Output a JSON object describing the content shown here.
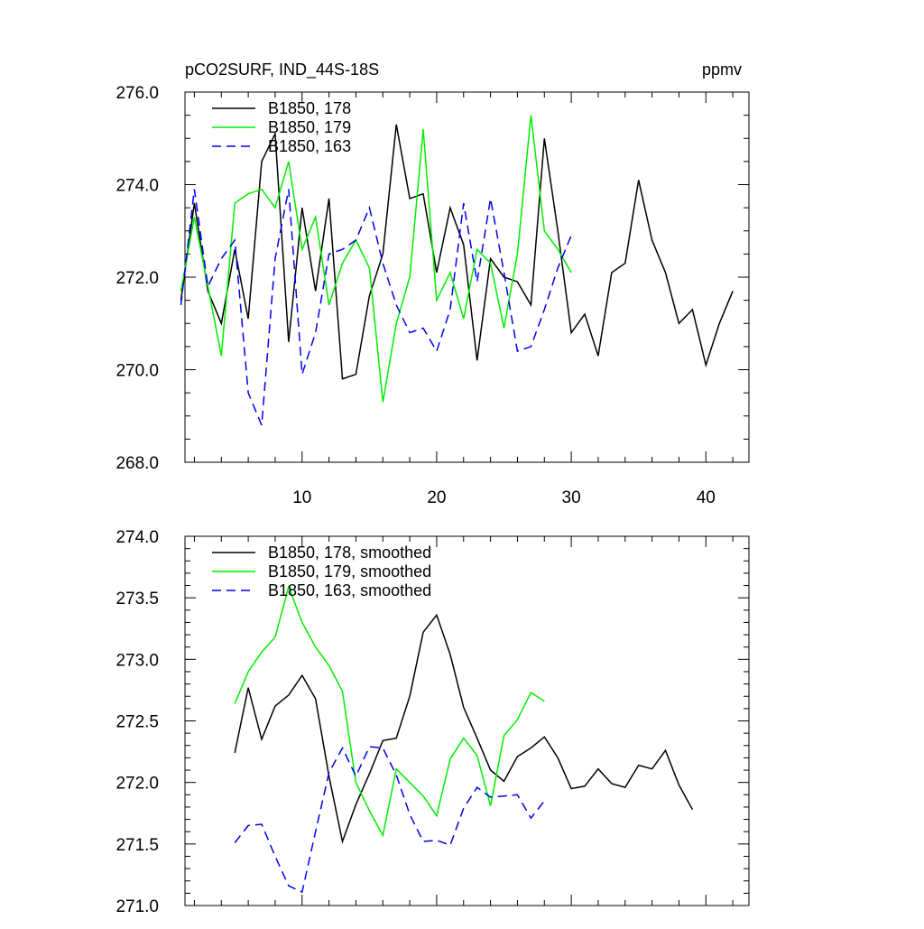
{
  "chart_data": [
    {
      "type": "line",
      "title": "pCO2SURF, IND_44S-18S",
      "units": "ppmv",
      "xlim": [
        1.3,
        43.2
      ],
      "ylim": [
        268.0,
        276.0
      ],
      "x_major_ticks": [
        10,
        20,
        30,
        40
      ],
      "x_tick_labels": [
        "10",
        "20",
        "30",
        "40"
      ],
      "x_minor_step": 2,
      "y_major_ticks": [
        268.0,
        270.0,
        272.0,
        274.0,
        276.0
      ],
      "y_tick_labels": [
        "268.0",
        "270.0",
        "272.0",
        "274.0",
        "276.0"
      ],
      "y_minor_step": 0.5,
      "legend_position": "top-left",
      "series": [
        {
          "name": "B1850, 178",
          "color": "#000000",
          "dash": "solid",
          "x": [
            1,
            2,
            3,
            4,
            5,
            6,
            7,
            8,
            9,
            10,
            11,
            12,
            13,
            14,
            15,
            16,
            17,
            18,
            19,
            20,
            21,
            22,
            23,
            24,
            25,
            26,
            27,
            28,
            29,
            30,
            31,
            32,
            33,
            34,
            35,
            36,
            37,
            38,
            39,
            40,
            41,
            42
          ],
          "values": [
            271.5,
            273.6,
            271.7,
            271.0,
            272.6,
            271.1,
            274.5,
            275.1,
            270.6,
            273.5,
            271.7,
            273.7,
            269.8,
            269.9,
            271.6,
            272.5,
            275.3,
            273.7,
            273.8,
            272.1,
            273.5,
            272.7,
            270.2,
            272.4,
            272.0,
            271.9,
            271.4,
            275.0,
            273.0,
            270.8,
            271.2,
            270.3,
            272.1,
            272.3,
            274.1,
            272.8,
            272.1,
            271.0,
            271.3,
            270.1,
            271.0,
            271.7
          ]
        },
        {
          "name": "B1850, 179",
          "color": "#00ee00",
          "dash": "solid",
          "x": [
            1,
            2,
            3,
            4,
            5,
            6,
            7,
            8,
            9,
            10,
            11,
            12,
            13,
            14,
            15,
            16,
            17,
            18,
            19,
            20,
            21,
            22,
            23,
            24,
            25,
            26,
            27,
            28,
            29,
            30
          ],
          "values": [
            271.7,
            273.3,
            271.8,
            270.3,
            273.6,
            273.8,
            273.9,
            273.5,
            274.5,
            272.6,
            273.3,
            271.4,
            272.3,
            272.8,
            272.2,
            269.3,
            271.0,
            272.0,
            275.2,
            271.5,
            272.1,
            271.1,
            272.6,
            272.3,
            270.9,
            272.5,
            275.5,
            273.0,
            272.6,
            272.1
          ]
        },
        {
          "name": "B1850, 163",
          "color": "#0000ee",
          "dash": "dashed",
          "x": [
            1,
            2,
            3,
            4,
            5,
            6,
            7,
            8,
            9,
            10,
            11,
            12,
            13,
            14,
            15,
            16,
            17,
            18,
            19,
            20,
            21,
            22,
            23,
            24,
            25,
            26,
            27,
            28,
            29,
            30
          ],
          "values": [
            271.4,
            273.9,
            271.8,
            272.4,
            272.8,
            269.5,
            268.8,
            272.4,
            273.9,
            269.9,
            270.8,
            272.5,
            272.6,
            272.8,
            273.5,
            272.3,
            271.4,
            270.8,
            270.9,
            270.4,
            271.3,
            273.6,
            271.9,
            273.7,
            272.1,
            270.4,
            270.5,
            271.3,
            272.2,
            272.9
          ]
        }
      ]
    },
    {
      "type": "line",
      "title": "",
      "xlim": [
        1.3,
        43.2
      ],
      "ylim": [
        271.0,
        274.0
      ],
      "x_major_ticks": [
        10,
        20,
        30,
        40
      ],
      "x_minor_step": 2,
      "y_major_ticks": [
        271.0,
        271.5,
        272.0,
        272.5,
        273.0,
        273.5,
        274.0
      ],
      "y_tick_labels": [
        "271.0",
        "271.5",
        "272.0",
        "272.5",
        "273.0",
        "273.5",
        "274.0"
      ],
      "y_minor_step": 0.1,
      "legend_position": "top-left",
      "series": [
        {
          "name": "B1850, 178, smoothed",
          "color": "#000000",
          "dash": "solid",
          "x": [
            5,
            6,
            7,
            8,
            9,
            10,
            11,
            12,
            13,
            14,
            15,
            16,
            17,
            18,
            19,
            20,
            21,
            22,
            23,
            24,
            25,
            26,
            27,
            28,
            29,
            30,
            31,
            32,
            33,
            34,
            35,
            36,
            37,
            38,
            39
          ],
          "values": [
            272.24,
            272.77,
            272.35,
            272.62,
            272.71,
            272.87,
            272.68,
            272.05,
            271.52,
            271.82,
            272.07,
            272.34,
            272.36,
            272.7,
            273.22,
            273.36,
            273.04,
            272.61,
            272.36,
            272.1,
            272.01,
            272.21,
            272.28,
            272.37,
            272.2,
            271.95,
            271.97,
            272.11,
            271.99,
            271.96,
            272.14,
            272.11,
            272.26,
            271.98,
            271.78
          ]
        },
        {
          "name": "B1850, 179, smoothed",
          "color": "#00ee00",
          "dash": "solid",
          "x": [
            5,
            6,
            7,
            8,
            9,
            10,
            11,
            12,
            13,
            14,
            15,
            16,
            17,
            18,
            19,
            20,
            21,
            22,
            23,
            24,
            25,
            26,
            27,
            28
          ],
          "values": [
            272.64,
            272.9,
            273.06,
            273.18,
            273.59,
            273.3,
            273.1,
            272.95,
            272.74,
            272.0,
            271.77,
            271.57,
            272.11,
            272.0,
            271.89,
            271.73,
            272.19,
            272.36,
            272.22,
            271.81,
            272.38,
            272.51,
            272.73,
            272.66
          ]
        },
        {
          "name": "B1850, 163, smoothed",
          "color": "#0000ee",
          "dash": "dashed",
          "x": [
            5,
            6,
            7,
            8,
            9,
            10,
            11,
            12,
            13,
            14,
            15,
            16,
            17,
            18,
            19,
            20,
            21,
            22,
            23,
            24,
            25,
            26,
            27,
            28
          ],
          "values": [
            271.51,
            271.65,
            271.66,
            271.4,
            271.16,
            271.11,
            271.6,
            272.08,
            272.28,
            272.05,
            272.29,
            272.28,
            272.06,
            271.74,
            271.52,
            271.53,
            271.49,
            271.79,
            271.96,
            271.88,
            271.89,
            271.9,
            271.71,
            271.85
          ]
        }
      ]
    }
  ]
}
